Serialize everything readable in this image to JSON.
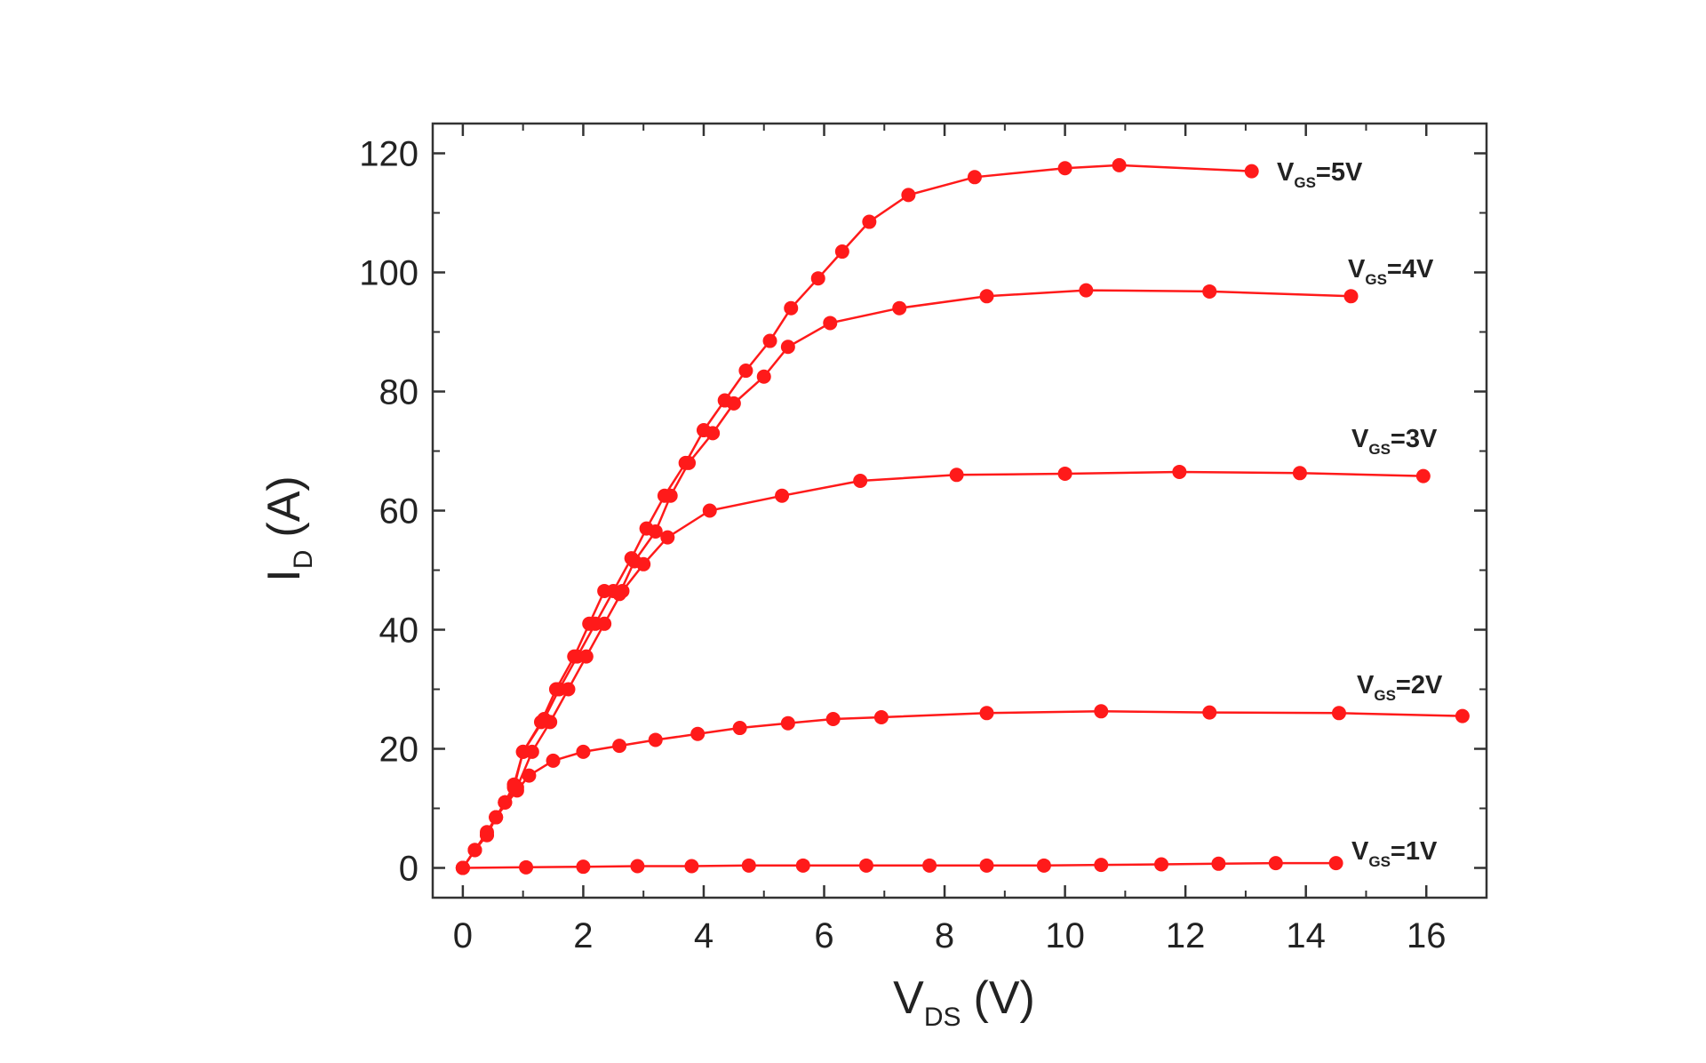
{
  "chart_data": {
    "type": "line",
    "xlabel": {
      "main": "V",
      "sub": "DS",
      "unit": "(V)"
    },
    "ylabel": {
      "main": "I",
      "sub": "D",
      "unit": "(A)"
    },
    "xlim": [
      -0.5,
      17
    ],
    "ylim": [
      -5,
      125
    ],
    "x_ticks": [
      0,
      2,
      4,
      6,
      8,
      10,
      12,
      14,
      16
    ],
    "y_ticks": [
      0,
      20,
      40,
      60,
      80,
      100,
      120
    ],
    "grid": false,
    "legend": "inline labels at right end of each curve",
    "color": "#ff1a1a",
    "series": [
      {
        "label_main": "V",
        "label_sub": "GS",
        "label_rest": "=5V",
        "x": [
          0,
          0.2,
          0.4,
          0.55,
          0.7,
          0.85,
          1.0,
          1.35,
          1.6,
          1.9,
          2.2,
          2.5,
          2.8,
          3.05,
          3.35,
          3.7,
          4.0,
          4.35,
          4.7,
          5.1,
          5.45,
          5.9,
          6.3,
          6.75,
          7.4,
          8.5,
          10.0,
          10.9,
          13.1
        ],
        "y": [
          0,
          3,
          6,
          8.5,
          11,
          14,
          19.5,
          25,
          30,
          35.5,
          41,
          46.5,
          52,
          57,
          62.5,
          68,
          73.5,
          78.5,
          83.5,
          88.5,
          94,
          99,
          103.5,
          108.5,
          113,
          116,
          117.5,
          118,
          117
        ]
      },
      {
        "label_main": "V",
        "label_sub": "GS",
        "label_rest": "=4V",
        "x": [
          0,
          0.2,
          0.4,
          0.55,
          0.7,
          0.85,
          1.0,
          1.3,
          1.55,
          1.85,
          2.1,
          2.35,
          2.6,
          2.85,
          3.2,
          3.45,
          3.75,
          4.15,
          4.5,
          5.0,
          5.4,
          6.1,
          7.25,
          8.7,
          10.35,
          12.4,
          14.75
        ],
        "y": [
          0,
          3,
          5.5,
          8.5,
          11,
          13.5,
          19.5,
          24.5,
          30,
          35.5,
          41,
          46.5,
          46,
          51.5,
          56.5,
          62.5,
          68,
          73,
          78,
          82.5,
          87.5,
          91.5,
          94,
          96,
          97,
          96.8,
          96
        ]
      },
      {
        "label_main": "V",
        "label_sub": "GS",
        "label_rest": "=3V",
        "x": [
          0,
          0.2,
          0.4,
          0.55,
          0.7,
          0.9,
          1.15,
          1.45,
          1.75,
          2.05,
          2.35,
          2.65,
          3.0,
          3.4,
          4.1,
          5.3,
          6.6,
          8.2,
          10.0,
          11.9,
          13.9,
          15.95
        ],
        "y": [
          0,
          3,
          5.5,
          8.5,
          11,
          13.5,
          19.5,
          24.5,
          30,
          35.5,
          41,
          46.5,
          51,
          55.5,
          60,
          62.5,
          65,
          66,
          66.2,
          66.5,
          66.3,
          65.8
        ]
      },
      {
        "label_main": "V",
        "label_sub": "GS",
        "label_rest": "=2V",
        "x": [
          0,
          0.2,
          0.4,
          0.55,
          0.7,
          0.9,
          1.1,
          1.5,
          2.0,
          2.6,
          3.2,
          3.9,
          4.6,
          5.4,
          6.15,
          6.95,
          8.7,
          10.6,
          12.4,
          14.55,
          16.6
        ],
        "y": [
          0,
          3,
          5.5,
          8.5,
          10.5,
          13,
          15.5,
          18,
          19.5,
          20.5,
          21.5,
          22.5,
          23.5,
          24.3,
          25,
          25.3,
          26,
          26.3,
          26.1,
          26,
          25.5
        ],
        "skip_points": [
          1,
          2,
          3,
          4
        ]
      },
      {
        "label_main": "V",
        "label_sub": "GS",
        "label_rest": "=1V",
        "x": [
          0,
          1.05,
          2.0,
          2.9,
          3.8,
          4.75,
          5.65,
          6.7,
          7.75,
          8.7,
          9.65,
          10.6,
          11.6,
          12.55,
          13.5,
          14.5
        ],
        "y": [
          0,
          0.1,
          0.2,
          0.3,
          0.3,
          0.4,
          0.4,
          0.4,
          0.4,
          0.4,
          0.4,
          0.5,
          0.6,
          0.7,
          0.8,
          0.8
        ]
      }
    ]
  }
}
